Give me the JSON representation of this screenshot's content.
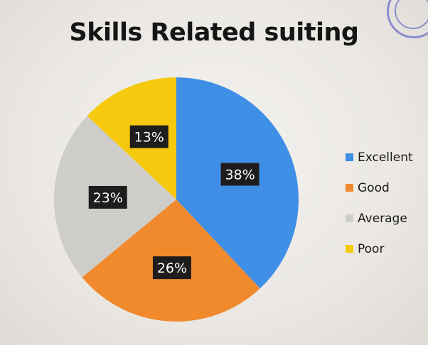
{
  "chart_data": {
    "type": "pie",
    "title": "Skills Related suiting",
    "categories": [
      "Excellent",
      "Good",
      "Average",
      "Poor"
    ],
    "values": [
      38,
      26,
      23,
      13
    ],
    "data_labels": [
      "38%",
      "26%",
      "23%",
      "13%"
    ],
    "colors": [
      "#3f8fe6",
      "#f08a2c",
      "#cfcdc9",
      "#f6c90e"
    ],
    "start_angle_deg": 0,
    "direction": "clockwise",
    "legend_placement": "right",
    "grid": false
  },
  "legend": {
    "items": [
      {
        "label": "Excellent",
        "color": "#3f8fe6"
      },
      {
        "label": "Good",
        "color": "#f08a2c"
      },
      {
        "label": "Average",
        "color": "#cfcdc9"
      },
      {
        "label": "Poor",
        "color": "#f6c90e"
      }
    ]
  }
}
